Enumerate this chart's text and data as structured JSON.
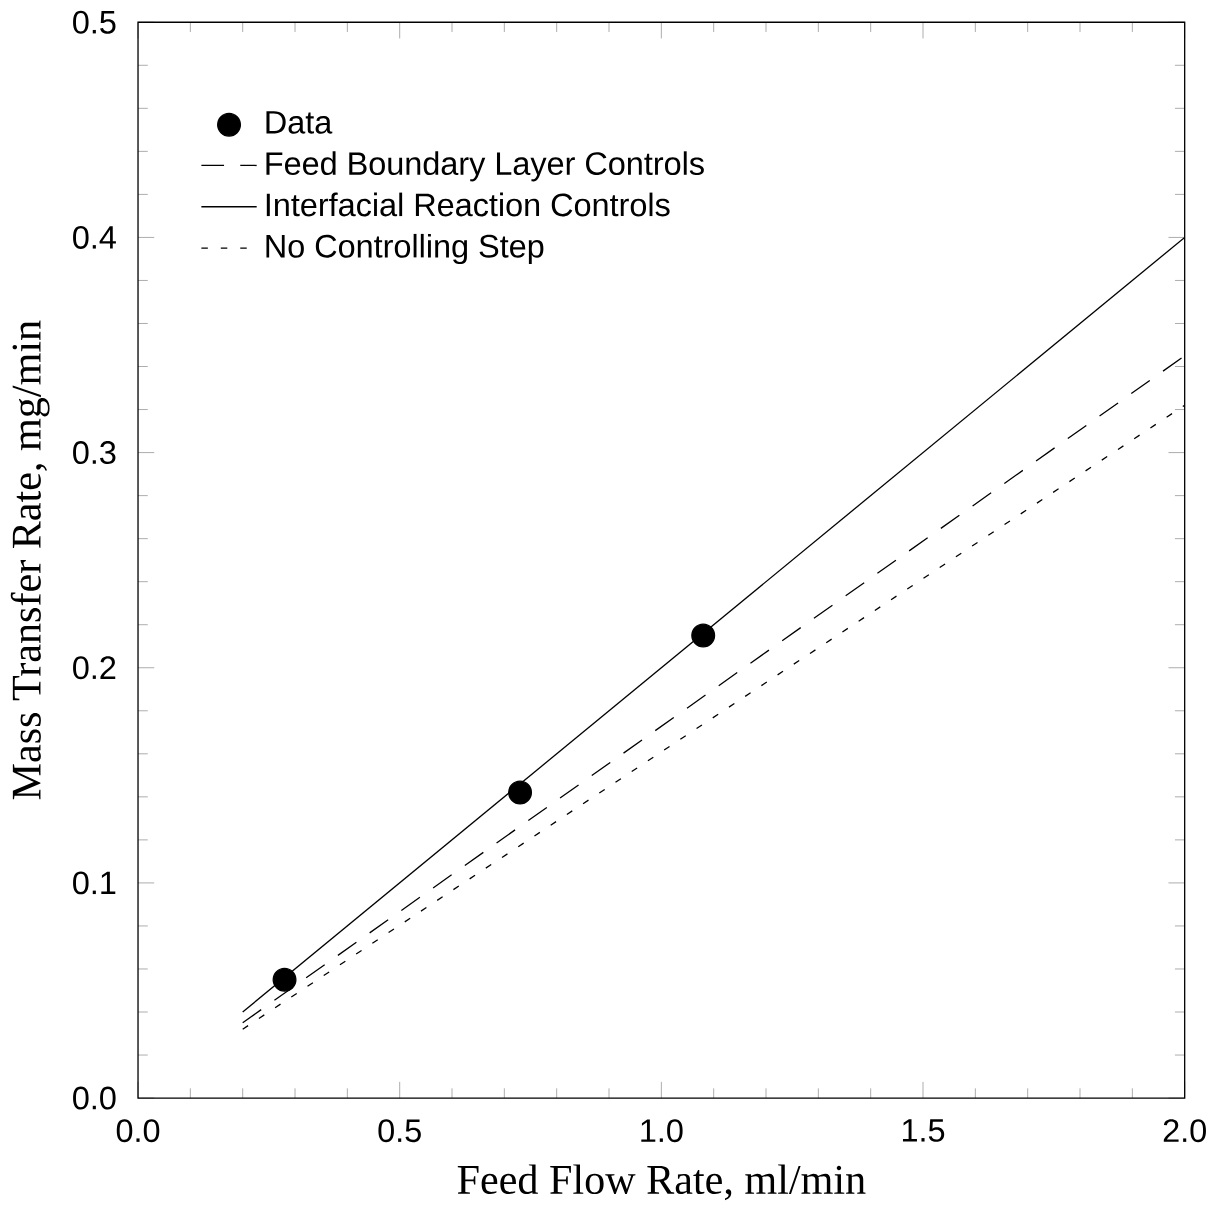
{
  "chart_data": {
    "type": "line",
    "xlabel": "Feed Flow Rate, ml/min",
    "ylabel": "Mass Transfer Rate, mg/min",
    "xlim": [
      0,
      2.0
    ],
    "ylim": [
      0,
      0.5
    ],
    "xticks": [
      {
        "value": 0,
        "label": "0.0"
      },
      {
        "value": 0.5,
        "label": "0.5"
      },
      {
        "value": 1.0,
        "label": "1.0"
      },
      {
        "value": 1.5,
        "label": "1.5"
      },
      {
        "value": 2.0,
        "label": "2.0"
      }
    ],
    "yticks": [
      {
        "value": 0,
        "label": "0.0"
      },
      {
        "value": 0.1,
        "label": "0.1"
      },
      {
        "value": 0.2,
        "label": "0.2"
      },
      {
        "value": 0.3,
        "label": "0.3"
      },
      {
        "value": 0.4,
        "label": "0.4"
      },
      {
        "value": 0.5,
        "label": "0.5"
      }
    ],
    "legend": "top left",
    "marker": "circle",
    "grid": false,
    "series": [
      {
        "name": "Data",
        "type": "scatter",
        "color": "#000000",
        "x": [
          0.28,
          0.73,
          1.08
        ],
        "values": [
          0.055,
          0.142,
          0.215
        ]
      },
      {
        "name": "Feed Boundary Layer Controls",
        "marker": "none",
        "line_style": "dashed",
        "color": "#000000",
        "x": [
          0.2,
          2.0
        ],
        "values": [
          0.035,
          0.345
        ]
      },
      {
        "name": "Interfacial Reaction Controls",
        "marker": "none",
        "line_style": "solid",
        "color": "#000000",
        "x": [
          0.2,
          2.0
        ],
        "values": [
          0.04,
          0.4
        ]
      },
      {
        "name": "No Controlling Step",
        "marker": "none",
        "line_style": "dotted",
        "color": "#000000",
        "x": [
          0.2,
          2.0
        ],
        "values": [
          0.032,
          0.322
        ]
      }
    ]
  }
}
